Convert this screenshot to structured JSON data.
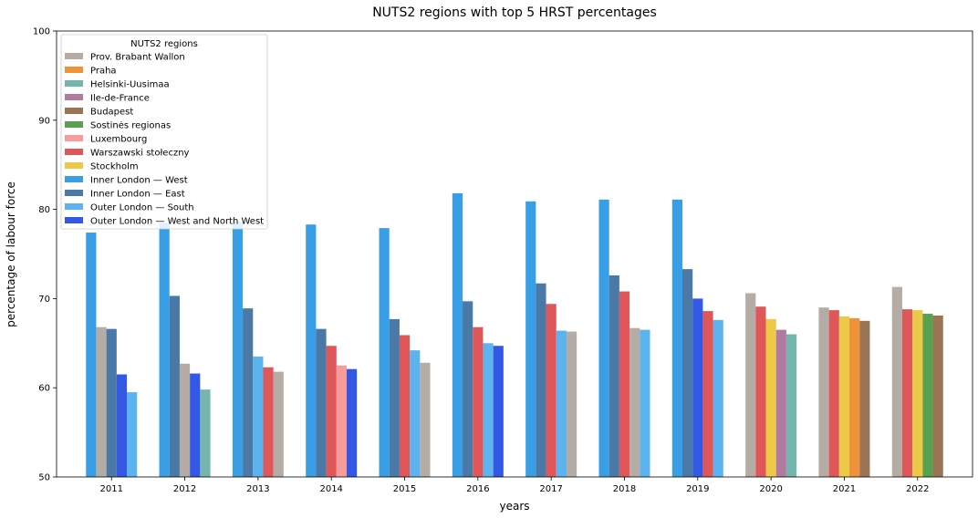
{
  "chart_data": {
    "type": "bar",
    "title": "NUTS2 regions with top 5 HRST percentages",
    "xlabel": "years",
    "ylabel": "percentage of labour force",
    "ylim": [
      50,
      100
    ],
    "yticks": [
      50,
      60,
      70,
      80,
      90,
      100
    ],
    "grid": false,
    "legend": {
      "title": "NUTS2 regions",
      "placement": "upper-left",
      "entries": [
        {
          "name": "Prov. Brabant Wallon",
          "color": "#b6aca6"
        },
        {
          "name": "Praha",
          "color": "#f0923a"
        },
        {
          "name": "Helsinki-Uusimaa",
          "color": "#74b5ae"
        },
        {
          "name": "Ile-de-France",
          "color": "#b07aa1"
        },
        {
          "name": "Budapest",
          "color": "#9b7456"
        },
        {
          "name": "Sostinės regionas",
          "color": "#59a14f"
        },
        {
          "name": "Luxembourg",
          "color": "#f79c9c"
        },
        {
          "name": "Warszawski stołeczny",
          "color": "#e05759"
        },
        {
          "name": "Stockholm",
          "color": "#edc948"
        },
        {
          "name": "Inner London — West",
          "color": "#389ee6"
        },
        {
          "name": "Inner London — East",
          "color": "#4a79a7"
        },
        {
          "name": "Outer London — South",
          "color": "#5db3ee"
        },
        {
          "name": "Outer London — West and North West",
          "color": "#3458e6"
        }
      ]
    },
    "categories": [
      "2011",
      "2012",
      "2013",
      "2014",
      "2015",
      "2016",
      "2017",
      "2018",
      "2019",
      "2020",
      "2021",
      "2022"
    ],
    "groups": [
      {
        "year": "2011",
        "bars": [
          {
            "region": "Inner London — West",
            "value": 77.4
          },
          {
            "region": "Prov. Brabant Wallon",
            "value": 66.8
          },
          {
            "region": "Inner London — East",
            "value": 66.6
          },
          {
            "region": "Outer London — West and North West",
            "value": 61.5
          },
          {
            "region": "Outer London — South",
            "value": 59.5
          }
        ]
      },
      {
        "year": "2012",
        "bars": [
          {
            "region": "Inner London — West",
            "value": 78.5
          },
          {
            "region": "Inner London — East",
            "value": 70.3
          },
          {
            "region": "Prov. Brabant Wallon",
            "value": 62.7
          },
          {
            "region": "Outer London — West and North West",
            "value": 61.6
          },
          {
            "region": "Helsinki-Uusimaa",
            "value": 59.8
          }
        ]
      },
      {
        "year": "2013",
        "bars": [
          {
            "region": "Inner London — West",
            "value": 78.6
          },
          {
            "region": "Inner London — East",
            "value": 68.9
          },
          {
            "region": "Outer London — South",
            "value": 63.5
          },
          {
            "region": "Warszawski stołeczny",
            "value": 62.3
          },
          {
            "region": "Prov. Brabant Wallon",
            "value": 61.8
          }
        ]
      },
      {
        "year": "2014",
        "bars": [
          {
            "region": "Inner London — West",
            "value": 78.3
          },
          {
            "region": "Inner London — East",
            "value": 66.6
          },
          {
            "region": "Warszawski stołeczny",
            "value": 64.7
          },
          {
            "region": "Luxembourg",
            "value": 62.5
          },
          {
            "region": "Outer London — West and North West",
            "value": 62.1
          }
        ]
      },
      {
        "year": "2015",
        "bars": [
          {
            "region": "Inner London — West",
            "value": 77.9
          },
          {
            "region": "Inner London — East",
            "value": 67.7
          },
          {
            "region": "Warszawski stołeczny",
            "value": 65.9
          },
          {
            "region": "Outer London — South",
            "value": 64.2
          },
          {
            "region": "Prov. Brabant Wallon",
            "value": 62.8
          }
        ]
      },
      {
        "year": "2016",
        "bars": [
          {
            "region": "Inner London — West",
            "value": 81.8
          },
          {
            "region": "Inner London — East",
            "value": 69.7
          },
          {
            "region": "Warszawski stołeczny",
            "value": 66.8
          },
          {
            "region": "Outer London — South",
            "value": 65.0
          },
          {
            "region": "Outer London — West and North West",
            "value": 64.7
          }
        ]
      },
      {
        "year": "2017",
        "bars": [
          {
            "region": "Inner London — West",
            "value": 80.9
          },
          {
            "region": "Inner London — East",
            "value": 71.7
          },
          {
            "region": "Warszawski stołeczny",
            "value": 69.4
          },
          {
            "region": "Outer London — South",
            "value": 66.4
          },
          {
            "region": "Prov. Brabant Wallon",
            "value": 66.3
          }
        ]
      },
      {
        "year": "2018",
        "bars": [
          {
            "region": "Inner London — West",
            "value": 81.1
          },
          {
            "region": "Inner London — East",
            "value": 72.6
          },
          {
            "region": "Warszawski stołeczny",
            "value": 70.8
          },
          {
            "region": "Prov. Brabant Wallon",
            "value": 66.7
          },
          {
            "region": "Outer London — South",
            "value": 66.5
          }
        ]
      },
      {
        "year": "2019",
        "bars": [
          {
            "region": "Inner London — West",
            "value": 81.1
          },
          {
            "region": "Inner London — East",
            "value": 73.3
          },
          {
            "region": "Outer London — West and North West",
            "value": 70.0
          },
          {
            "region": "Warszawski stołeczny",
            "value": 68.6
          },
          {
            "region": "Outer London — South",
            "value": 67.6
          }
        ]
      },
      {
        "year": "2020",
        "bars": [
          {
            "region": "Prov. Brabant Wallon",
            "value": 70.6
          },
          {
            "region": "Warszawski stołeczny",
            "value": 69.1
          },
          {
            "region": "Stockholm",
            "value": 67.7
          },
          {
            "region": "Ile-de-France",
            "value": 66.5
          },
          {
            "region": "Helsinki-Uusimaa",
            "value": 66.0
          }
        ]
      },
      {
        "year": "2021",
        "bars": [
          {
            "region": "Prov. Brabant Wallon",
            "value": 69.0
          },
          {
            "region": "Warszawski stołeczny",
            "value": 68.7
          },
          {
            "region": "Stockholm",
            "value": 68.0
          },
          {
            "region": "Praha",
            "value": 67.8
          },
          {
            "region": "Budapest",
            "value": 67.5
          }
        ]
      },
      {
        "year": "2022",
        "bars": [
          {
            "region": "Prov. Brabant Wallon",
            "value": 71.3
          },
          {
            "region": "Warszawski stołeczny",
            "value": 68.8
          },
          {
            "region": "Stockholm",
            "value": 68.7
          },
          {
            "region": "Sostinės regionas",
            "value": 68.3
          },
          {
            "region": "Budapest",
            "value": 68.1
          }
        ]
      }
    ]
  }
}
